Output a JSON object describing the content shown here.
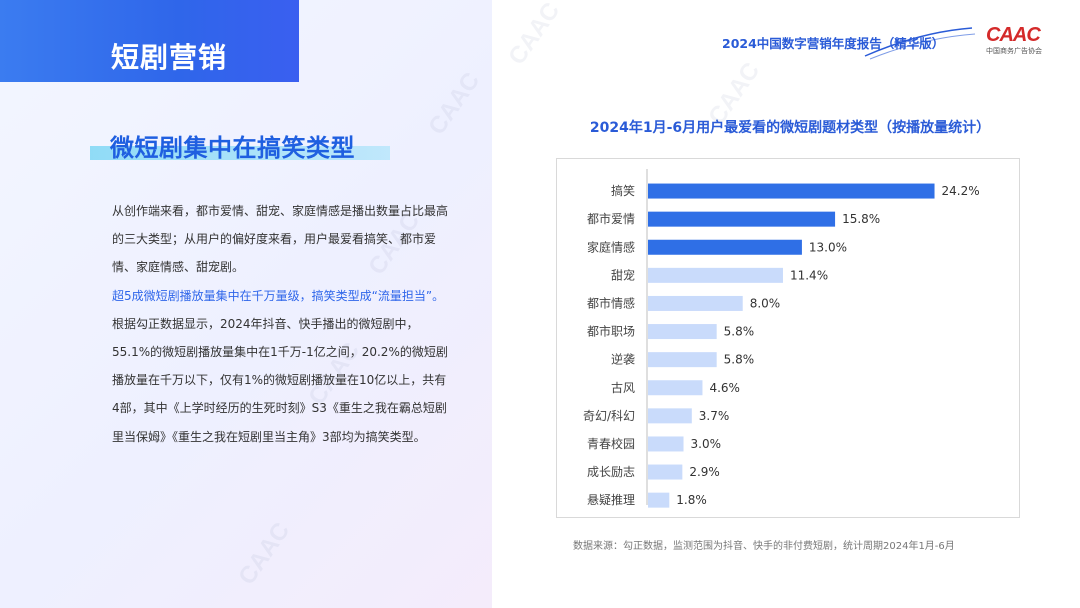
{
  "section": {
    "tag": "短剧营销"
  },
  "header": {
    "title": "2024中国数字营销年度报告（精华版）"
  },
  "logo": {
    "text": "CAAC",
    "subtitle": "中国商务广告协会"
  },
  "main": {
    "heading": "微短剧集中在搞笑类型",
    "paragraph1": "从创作端来看，都市爱情、甜宠、家庭情感是播出数量占比最高的三大类型；从用户的偏好度来看，用户最爱看搞笑、都市爱情、家庭情感、甜宠剧。",
    "paragraph2_highlight": "超5成微短剧播放量集中在千万量级，搞笑类型成“流量担当”。",
    "paragraph2_rest": "根据勾正数据显示，2024年抖音、快手播出的微短剧中，55.1%的微短剧播放量集中在1千万-1亿之间，20.2%的微短剧播放量在千万以下，仅有1%的微短剧播放量在10亿以上，共有4部，其中《上学时经历的生死时刻》S3《重生之我在霸总短剧里当保姆》《重生之我在短剧里当主角》3部均为搞笑类型。"
  },
  "watermark": "CAAC",
  "colors": {
    "accent": "#2f66ea",
    "bar_dark": "#2f6fe6",
    "bar_light": "#c9dbfb"
  },
  "chart_data": {
    "type": "bar",
    "orientation": "horizontal",
    "title": "2024年1月-6月用户最爱看的微短剧题材类型（按播放量统计）",
    "categories": [
      "搞笑",
      "都市爱情",
      "家庭情感",
      "甜宠",
      "都市情感",
      "都市职场",
      "逆袭",
      "古风",
      "奇幻/科幻",
      "青春校园",
      "成长励志",
      "悬疑推理"
    ],
    "values": [
      24.2,
      15.8,
      13.0,
      11.4,
      8.0,
      5.8,
      5.8,
      4.6,
      3.7,
      3.0,
      2.9,
      1.8
    ],
    "value_labels": [
      "24.2%",
      "15.8%",
      "13.0%",
      "11.4%",
      "8.0%",
      "5.8%",
      "5.8%",
      "4.6%",
      "3.7%",
      "3.0%",
      "2.9%",
      "1.8%"
    ],
    "highlighted_count": 3,
    "xlim": [
      0,
      25
    ],
    "grid": false,
    "source": "数据来源：勾正数据，监测范围为抖音、快手的非付费短剧，统计周期2024年1月-6月"
  }
}
